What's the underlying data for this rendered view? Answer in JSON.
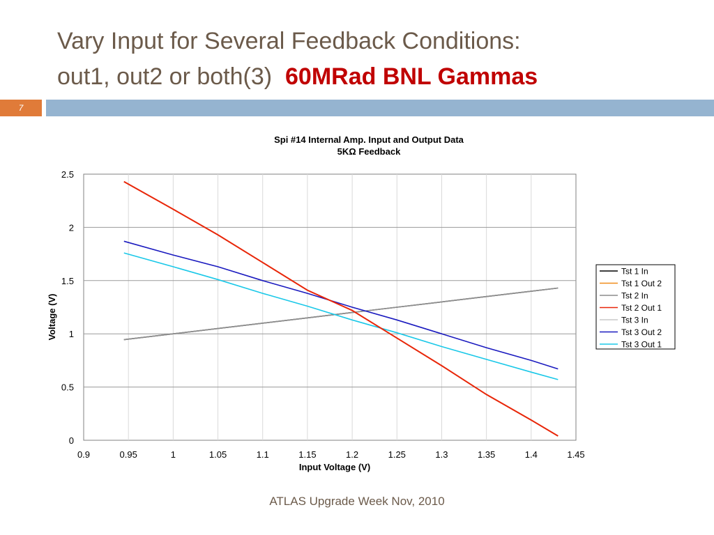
{
  "slide": {
    "title_line1": "Vary Input for Several Feedback Conditions:",
    "title_line2": "out1, out2 or both(3)",
    "title_accent": "60MRad BNL Gammas",
    "number": "7",
    "footer": "ATLAS  Upgrade Week  Nov, 2010",
    "colors": {
      "title": "#6b5a4a",
      "accent": "#c00000",
      "bar": "#95b4d0",
      "number_box": "#e07b39"
    }
  },
  "chart_data": {
    "type": "line",
    "title": "Spi #14 Internal Amp. Input and Output Data",
    "subtitle": "5KΩ Feedback",
    "xlabel": "Input Voltage (V)",
    "ylabel": "Voltage (V)",
    "xlim": [
      0.9,
      1.45
    ],
    "ylim": [
      0,
      2.5
    ],
    "x_ticks": [
      "0.9",
      "0.95",
      "1",
      "1.05",
      "1.1",
      "1.15",
      "1.2",
      "1.25",
      "1.3",
      "1.35",
      "1.4",
      "1.45"
    ],
    "y_ticks": [
      "0",
      "0.5",
      "1",
      "1.5",
      "2",
      "2.5"
    ],
    "grid": "horizontal and vertical",
    "legend_position": "right",
    "x": [
      0.945,
      1.0,
      1.05,
      1.1,
      1.15,
      1.2,
      1.25,
      1.3,
      1.35,
      1.4,
      1.43
    ],
    "series": [
      {
        "name": "Tst 1 In",
        "color": "#000000",
        "values": [
          0.945,
          1.0,
          1.05,
          1.1,
          1.15,
          1.2,
          1.25,
          1.3,
          1.35,
          1.4,
          1.43
        ]
      },
      {
        "name": "Tst 1 Out 2",
        "color": "#f08c1a",
        "values": [
          2.43,
          2.17,
          1.93,
          1.67,
          1.41,
          1.22,
          0.96,
          0.7,
          0.43,
          0.19,
          0.04
        ]
      },
      {
        "name": "Tst 2 In",
        "color": "#8c8c8c",
        "values": [
          0.945,
          1.0,
          1.05,
          1.1,
          1.15,
          1.2,
          1.25,
          1.3,
          1.35,
          1.4,
          1.43
        ]
      },
      {
        "name": "Tst 2 Out 1",
        "color": "#e8260a",
        "values": [
          2.43,
          2.17,
          1.93,
          1.67,
          1.41,
          1.22,
          0.96,
          0.7,
          0.43,
          0.19,
          0.04
        ]
      },
      {
        "name": "Tst 3 In",
        "color": "#c8c8c8",
        "values": [
          0.945,
          1.0,
          1.05,
          1.1,
          1.15,
          1.2,
          1.25,
          1.3,
          1.35,
          1.4,
          1.43
        ]
      },
      {
        "name": "Tst 3 Out 2",
        "color": "#1a1abf",
        "values": [
          1.87,
          1.74,
          1.63,
          1.5,
          1.38,
          1.25,
          1.13,
          1.0,
          0.87,
          0.75,
          0.67
        ]
      },
      {
        "name": "Tst 3 Out 1",
        "color": "#1ac8e8",
        "values": [
          1.76,
          1.63,
          1.51,
          1.38,
          1.26,
          1.13,
          1.01,
          0.88,
          0.76,
          0.64,
          0.57
        ]
      }
    ]
  }
}
